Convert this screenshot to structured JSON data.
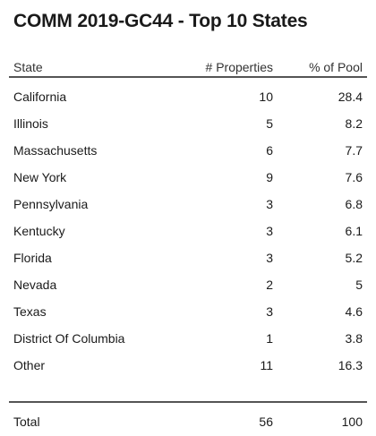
{
  "chart_data": {
    "type": "table",
    "title": "COMM 2019-GC44 - Top 10 States",
    "columns": [
      "State",
      "# Properties",
      "% of Pool"
    ],
    "rows": [
      {
        "state": "California",
        "properties": "10",
        "pool": "28.4"
      },
      {
        "state": "Illinois",
        "properties": "5",
        "pool": "8.2"
      },
      {
        "state": "Massachusetts",
        "properties": "6",
        "pool": "7.7"
      },
      {
        "state": "New York",
        "properties": "9",
        "pool": "7.6"
      },
      {
        "state": "Pennsylvania",
        "properties": "3",
        "pool": "6.8"
      },
      {
        "state": "Kentucky",
        "properties": "3",
        "pool": "6.1"
      },
      {
        "state": "Florida",
        "properties": "3",
        "pool": "5.2"
      },
      {
        "state": "Nevada",
        "properties": "2",
        "pool": "5"
      },
      {
        "state": "Texas",
        "properties": "3",
        "pool": "4.6"
      },
      {
        "state": "District Of Columbia",
        "properties": "1",
        "pool": "3.8"
      },
      {
        "state": "Other",
        "properties": "11",
        "pool": "16.3"
      }
    ],
    "total": {
      "label": "Total",
      "properties": "56",
      "pool": "100"
    }
  }
}
